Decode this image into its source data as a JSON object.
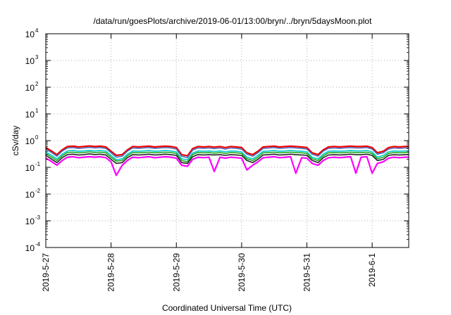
{
  "chart_data": {
    "type": "line",
    "title": "/data/run/goesPlots/archive/2019-06-01/13:00/bryn/../bryn/5daysMoon.plot",
    "xlabel": "Coordinated Universal Time (UTC)",
    "ylabel": "cSv/day",
    "yscale": "log",
    "ylim": [
      0.0001,
      10000
    ],
    "xlim": [
      0,
      5.56
    ],
    "grid": true,
    "y_ticks": [
      {
        "exp": "-4",
        "value": 0.0001
      },
      {
        "exp": "-3",
        "value": 0.001
      },
      {
        "exp": "-2",
        "value": 0.01
      },
      {
        "exp": "-1",
        "value": 0.1
      },
      {
        "exp": "0",
        "value": 1
      },
      {
        "exp": "1",
        "value": 10
      },
      {
        "exp": "2",
        "value": 100
      },
      {
        "exp": "3",
        "value": 1000
      },
      {
        "exp": "4",
        "value": 10000
      }
    ],
    "y_tick_base": "10",
    "x_ticks": [
      {
        "label": "2019-5-27",
        "value": 0
      },
      {
        "label": "2019-5-28",
        "value": 1
      },
      {
        "label": "2019-5-29",
        "value": 2
      },
      {
        "label": "2019-5-30",
        "value": 3
      },
      {
        "label": "2019-5-31",
        "value": 4
      },
      {
        "label": "2019-6-1",
        "value": 5
      }
    ],
    "x": [
      0.0,
      0.08,
      0.17,
      0.25,
      0.33,
      0.42,
      0.5,
      0.58,
      0.67,
      0.75,
      0.83,
      0.92,
      1.0,
      1.08,
      1.17,
      1.25,
      1.33,
      1.42,
      1.5,
      1.58,
      1.67,
      1.75,
      1.83,
      1.92,
      2.0,
      2.08,
      2.17,
      2.25,
      2.33,
      2.42,
      2.5,
      2.58,
      2.67,
      2.75,
      2.83,
      2.92,
      3.0,
      3.08,
      3.17,
      3.25,
      3.33,
      3.42,
      3.5,
      3.58,
      3.67,
      3.75,
      3.83,
      3.92,
      4.0,
      4.08,
      4.17,
      4.25,
      4.33,
      4.42,
      4.5,
      4.58,
      4.67,
      4.75,
      4.83,
      4.92,
      5.0,
      5.08,
      5.17,
      5.25,
      5.33,
      5.42,
      5.5,
      5.56
    ],
    "series": [
      {
        "color": "#ee0000",
        "values": [
          0.55,
          0.42,
          0.3,
          0.45,
          0.6,
          0.62,
          0.58,
          0.6,
          0.63,
          0.6,
          0.62,
          0.58,
          0.4,
          0.28,
          0.3,
          0.45,
          0.6,
          0.58,
          0.6,
          0.62,
          0.58,
          0.6,
          0.62,
          0.6,
          0.55,
          0.3,
          0.27,
          0.5,
          0.6,
          0.58,
          0.6,
          0.57,
          0.6,
          0.55,
          0.6,
          0.58,
          0.55,
          0.35,
          0.3,
          0.4,
          0.58,
          0.6,
          0.62,
          0.58,
          0.6,
          0.62,
          0.6,
          0.58,
          0.55,
          0.35,
          0.3,
          0.45,
          0.58,
          0.6,
          0.58,
          0.6,
          0.62,
          0.6,
          0.6,
          0.62,
          0.55,
          0.35,
          0.4,
          0.55,
          0.6,
          0.58,
          0.6,
          0.6
        ]
      },
      {
        "color": "#4a6fbf",
        "values": [
          0.48,
          0.37,
          0.26,
          0.4,
          0.53,
          0.55,
          0.51,
          0.53,
          0.56,
          0.53,
          0.55,
          0.51,
          0.35,
          0.24,
          0.26,
          0.4,
          0.53,
          0.51,
          0.53,
          0.55,
          0.51,
          0.53,
          0.55,
          0.53,
          0.48,
          0.26,
          0.23,
          0.44,
          0.53,
          0.51,
          0.53,
          0.5,
          0.53,
          0.48,
          0.53,
          0.51,
          0.48,
          0.31,
          0.26,
          0.35,
          0.51,
          0.53,
          0.55,
          0.51,
          0.53,
          0.55,
          0.53,
          0.51,
          0.48,
          0.31,
          0.26,
          0.4,
          0.51,
          0.53,
          0.51,
          0.53,
          0.55,
          0.53,
          0.53,
          0.55,
          0.48,
          0.31,
          0.35,
          0.48,
          0.53,
          0.51,
          0.53,
          0.53
        ]
      },
      {
        "color": "#00cccc",
        "values": [
          0.38,
          0.29,
          0.21,
          0.31,
          0.41,
          0.43,
          0.4,
          0.41,
          0.43,
          0.41,
          0.43,
          0.4,
          0.28,
          0.19,
          0.21,
          0.31,
          0.41,
          0.4,
          0.41,
          0.43,
          0.4,
          0.41,
          0.43,
          0.41,
          0.38,
          0.21,
          0.19,
          0.34,
          0.41,
          0.4,
          0.41,
          0.39,
          0.41,
          0.38,
          0.41,
          0.4,
          0.38,
          0.24,
          0.21,
          0.28,
          0.4,
          0.41,
          0.43,
          0.4,
          0.41,
          0.43,
          0.41,
          0.4,
          0.38,
          0.24,
          0.21,
          0.31,
          0.4,
          0.41,
          0.4,
          0.41,
          0.43,
          0.41,
          0.41,
          0.43,
          0.38,
          0.24,
          0.28,
          0.38,
          0.41,
          0.4,
          0.41,
          0.41
        ]
      },
      {
        "color": "#22aa22",
        "values": [
          0.33,
          0.25,
          0.18,
          0.27,
          0.36,
          0.37,
          0.35,
          0.36,
          0.38,
          0.36,
          0.37,
          0.35,
          0.24,
          0.17,
          0.18,
          0.27,
          0.36,
          0.35,
          0.36,
          0.37,
          0.35,
          0.36,
          0.37,
          0.36,
          0.33,
          0.18,
          0.16,
          0.3,
          0.36,
          0.35,
          0.36,
          0.34,
          0.36,
          0.33,
          0.36,
          0.35,
          0.33,
          0.21,
          0.18,
          0.24,
          0.35,
          0.36,
          0.37,
          0.35,
          0.36,
          0.37,
          0.36,
          0.35,
          0.33,
          0.21,
          0.18,
          0.27,
          0.35,
          0.36,
          0.35,
          0.36,
          0.37,
          0.36,
          0.36,
          0.37,
          0.33,
          0.21,
          0.24,
          0.33,
          0.36,
          0.35,
          0.36,
          0.36
        ]
      },
      {
        "color": "#222222",
        "values": [
          0.28,
          0.21,
          0.15,
          0.23,
          0.3,
          0.31,
          0.29,
          0.3,
          0.32,
          0.3,
          0.31,
          0.29,
          0.2,
          0.14,
          0.15,
          0.23,
          0.3,
          0.29,
          0.3,
          0.31,
          0.29,
          0.3,
          0.31,
          0.3,
          0.28,
          0.15,
          0.14,
          0.25,
          0.3,
          0.29,
          0.3,
          0.29,
          0.3,
          0.28,
          0.3,
          0.29,
          0.28,
          0.18,
          0.15,
          0.2,
          0.29,
          0.3,
          0.31,
          0.29,
          0.3,
          0.31,
          0.3,
          0.29,
          0.28,
          0.18,
          0.15,
          0.23,
          0.29,
          0.3,
          0.29,
          0.3,
          0.31,
          0.3,
          0.3,
          0.31,
          0.28,
          0.18,
          0.2,
          0.28,
          0.3,
          0.29,
          0.3,
          0.3
        ]
      },
      {
        "color": "#ff00ff",
        "values": [
          0.22,
          0.17,
          0.12,
          0.18,
          0.24,
          0.25,
          0.23,
          0.24,
          0.25,
          0.24,
          0.25,
          0.23,
          0.16,
          0.05,
          0.12,
          0.18,
          0.24,
          0.23,
          0.24,
          0.25,
          0.23,
          0.24,
          0.25,
          0.24,
          0.22,
          0.12,
          0.11,
          0.2,
          0.24,
          0.23,
          0.24,
          0.07,
          0.24,
          0.22,
          0.24,
          0.23,
          0.22,
          0.08,
          0.12,
          0.16,
          0.23,
          0.24,
          0.25,
          0.23,
          0.24,
          0.25,
          0.06,
          0.23,
          0.22,
          0.14,
          0.12,
          0.18,
          0.23,
          0.24,
          0.23,
          0.24,
          0.25,
          0.06,
          0.24,
          0.25,
          0.06,
          0.14,
          0.16,
          0.22,
          0.24,
          0.23,
          0.24,
          0.24
        ]
      }
    ]
  }
}
